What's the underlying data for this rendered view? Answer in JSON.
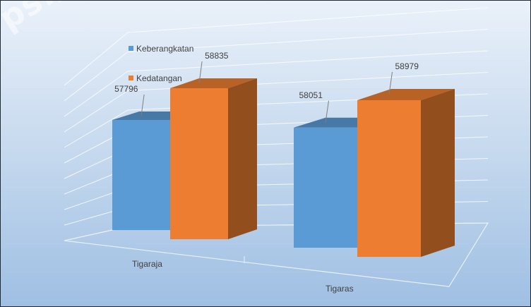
{
  "watermark": "ps://sima",
  "chart_data": {
    "type": "bar",
    "style": "3d-clustered-column",
    "title": "",
    "xlabel": "",
    "ylabel": "",
    "categories": [
      "Tigaraja",
      "Tigaras"
    ],
    "series": [
      {
        "name": "Keberangkatan",
        "color": "#5b9bd5",
        "values": [
          57796,
          58051
        ]
      },
      {
        "name": "Kedatangan",
        "color": "#ed7d31",
        "values": [
          58835,
          58979
        ]
      }
    ],
    "ylim": [
      55000,
      60000
    ],
    "grid": true,
    "legend": "top-left"
  }
}
